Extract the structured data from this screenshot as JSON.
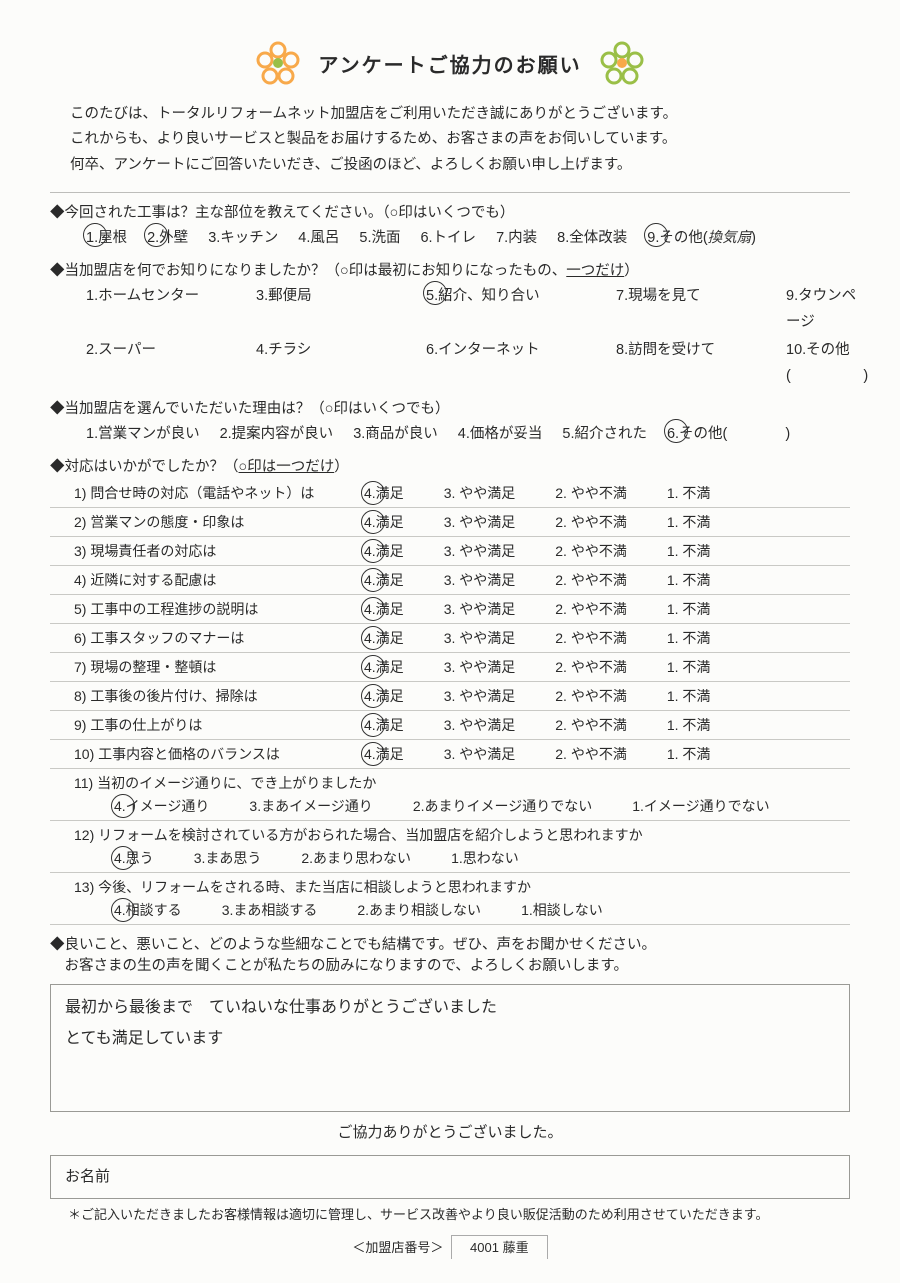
{
  "title": "アンケートご協力のお願い",
  "intro": [
    "このたびは、トータルリフォームネット加盟店をご利用いただき誠にありがとうございます。",
    "これからも、より良いサービスと製品をお届けするため、お客さまの声をお伺いしています。",
    "何卒、アンケートにご回答いたいだき、ご投函のほど、よろしくお願い申し上げます。"
  ],
  "q1": {
    "head": "◆今回された工事は？主な部位を教えてください。（○印はいくつでも）",
    "opts": [
      "1.屋根",
      "2.外壁",
      "3.キッチン",
      "4.風呂",
      "5.洗面",
      "6.トイレ",
      "7.内装",
      "8.全体改装",
      "9.その他(",
      "換気扇",
      ")"
    ],
    "circled": [
      0,
      1,
      8
    ]
  },
  "q2": {
    "head_a": "◆当加盟店を何でお知りになりましたか？（○印は最初にお知りになったもの、",
    "head_b": "一つだけ",
    "head_c": "）",
    "grid": [
      [
        "1.ホームセンター",
        "3.郵便局",
        "5.紹介、知り合い",
        "7.現場を見て",
        "9.タウンページ"
      ],
      [
        "2.スーパー",
        "4.チラシ",
        "6.インターネット",
        "8.訪問を受けて",
        "10.その他(　　　　　)"
      ]
    ],
    "circled": "5."
  },
  "q3": {
    "head": "◆当加盟店を選んでいただいた理由は？（○印はいくつでも）",
    "opts": [
      "1.営業マンが良い",
      "2.提案内容が良い",
      "3.商品が良い",
      "4.価格が妥当",
      "5.紹介された",
      "6.その他(　　　　)"
    ],
    "circled": 5
  },
  "q4": {
    "head_a": "◆対応はいかがでしたか？（",
    "head_b": "○印は一つだけ",
    "head_c": "）",
    "scale": [
      "4.満足",
      "3. やや満足",
      "2. やや不満",
      "1. 不満"
    ],
    "rows": [
      "1) 問合せ時の対応（電話やネット）は",
      "2) 営業マンの態度・印象は",
      "3) 現場責任者の対応は",
      "4) 近隣に対する配慮は",
      "5) 工事中の工程進捗の説明は",
      "6) 工事スタッフのマナーは",
      "7) 現場の整理・整頓は",
      "8) 工事後の後片付け、掃除は",
      "9) 工事の仕上がりは",
      "10) 工事内容と価格のバランスは"
    ],
    "wide": [
      {
        "q": "11) 当初のイメージ通りに、でき上がりましたか",
        "opts": [
          "4.イメージ通り",
          "3.まあイメージ通り",
          "2.あまりイメージ通りでない",
          "1.イメージ通りでない"
        ]
      },
      {
        "q": "12) リフォームを検討されている方がおられた場合、当加盟店を紹介しようと思われますか",
        "opts": [
          "4.思う",
          "3.まあ思う",
          "2.あまり思わない",
          "1.思わない"
        ]
      },
      {
        "q": "13) 今後、リフォームをされる時、また当店に相談しようと思われますか",
        "opts": [
          "4.相談する",
          "3.まあ相談する",
          "2.あまり相談しない",
          "1.相談しない"
        ]
      }
    ]
  },
  "q5": {
    "head1": "◆良いこと、悪いこと、どのような些細なことでも結構です。ぜひ、声をお聞かせください。",
    "head2": "　お客さまの生の声を聞くことが私たちの励みになりますので、よろしくお願いします。",
    "comment1": "最初から最後まで　ていねいな仕事ありがとうございました",
    "comment2": "とても満足しています"
  },
  "thanks": "ご協力ありがとうございました。",
  "name_label": "お名前",
  "note": "＊ご記入いただきましたお客様情報は適切に管理し、サービス改善やより良い販促活動のため利用させていただきます。",
  "footer_label": "＜加盟店番号＞",
  "footer_val": "4001 藤重",
  "colors": {
    "flower_orange": "#f8a94a",
    "flower_green": "#9abf47"
  }
}
